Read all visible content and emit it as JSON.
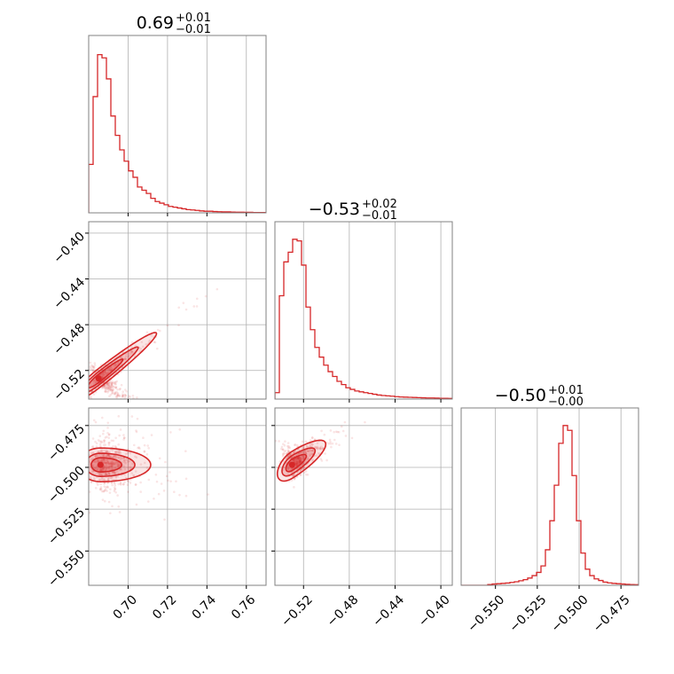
{
  "chart_data": {
    "type": "corner",
    "color": "#d62728",
    "grid": true,
    "parameters": [
      {
        "range": [
          0.68,
          0.77
        ],
        "ticks": [
          0.7,
          0.72,
          0.74,
          0.76
        ],
        "tick_labels": [
          "0.70",
          "0.72",
          "0.74",
          "0.76"
        ],
        "title": {
          "median": "0.69",
          "plus": "+0.01",
          "minus": "−0.01"
        }
      },
      {
        "range": [
          -0.545,
          -0.39
        ],
        "ticks": [
          -0.52,
          -0.48,
          -0.44,
          -0.4
        ],
        "tick_labels": [
          "−0.52",
          "−0.48",
          "−0.44",
          "−0.40"
        ],
        "title": {
          "median": "−0.53",
          "plus": "+0.02",
          "minus": "−0.01"
        }
      },
      {
        "range": [
          -0.5705,
          -0.4645
        ],
        "ticks": [
          -0.55,
          -0.525,
          -0.5,
          -0.475
        ],
        "tick_labels": [
          "−0.550",
          "−0.525",
          "−0.500",
          "−0.475"
        ],
        "title": {
          "median": "−0.50",
          "plus": "+0.01",
          "minus": "−0.00"
        }
      }
    ],
    "histograms": [
      [
        0.3,
        0.72,
        0.98,
        0.96,
        0.83,
        0.6,
        0.48,
        0.39,
        0.32,
        0.26,
        0.22,
        0.16,
        0.14,
        0.12,
        0.09,
        0.07,
        0.06,
        0.05,
        0.04,
        0.035,
        0.03,
        0.025,
        0.02,
        0.018,
        0.015,
        0.012,
        0.01,
        0.01,
        0.008,
        0.007,
        0.006,
        0.006,
        0.005,
        0.004,
        0.004,
        0.003,
        0.003,
        0.002,
        0.002,
        0.002
      ],
      [
        0.04,
        0.64,
        0.85,
        0.91,
        0.99,
        0.98,
        0.83,
        0.57,
        0.43,
        0.32,
        0.26,
        0.21,
        0.17,
        0.14,
        0.11,
        0.09,
        0.07,
        0.06,
        0.05,
        0.045,
        0.04,
        0.035,
        0.03,
        0.025,
        0.022,
        0.02,
        0.018,
        0.015,
        0.013,
        0.012,
        0.011,
        0.01,
        0.009,
        0.008,
        0.007,
        0.007,
        0.006,
        0.005,
        0.005,
        0.004
      ],
      [
        0.0,
        0.0,
        0.0,
        0.0,
        0.0,
        0.0,
        0.005,
        0.008,
        0.01,
        0.012,
        0.014,
        0.018,
        0.022,
        0.028,
        0.035,
        0.045,
        0.06,
        0.08,
        0.12,
        0.22,
        0.4,
        0.62,
        0.88,
        0.99,
        0.96,
        0.68,
        0.4,
        0.2,
        0.1,
        0.06,
        0.04,
        0.03,
        0.02,
        0.015,
        0.012,
        0.01,
        0.008,
        0.006,
        0.005,
        0.004
      ]
    ],
    "pairs": [
      {
        "x": 0,
        "y": 1,
        "mode": [
          0.685,
          -0.527
        ],
        "cov": [
          [
            6e-05,
            8e-05
          ],
          [
            8e-05,
            0.00012
          ]
        ],
        "contour_scale": [
          0.004,
          0.0065,
          0.0095
        ]
      },
      {
        "x": 0,
        "y": 2,
        "mode": [
          0.686,
          -0.4985
        ],
        "cov": [
          [
            4.5e-05,
            0.0
          ],
          [
            0.0,
            1.8e-05
          ]
        ],
        "contour_scale": [
          0.004,
          0.0065,
          0.0095
        ]
      },
      {
        "x": 1,
        "y": 2,
        "mode": [
          -0.53,
          -0.4985
        ],
        "cov": [
          [
            6e-05,
            2.5e-05
          ],
          [
            2.5e-05,
            2.2e-05
          ]
        ],
        "contour_scale": [
          0.004,
          0.0065,
          0.0095
        ]
      }
    ]
  }
}
